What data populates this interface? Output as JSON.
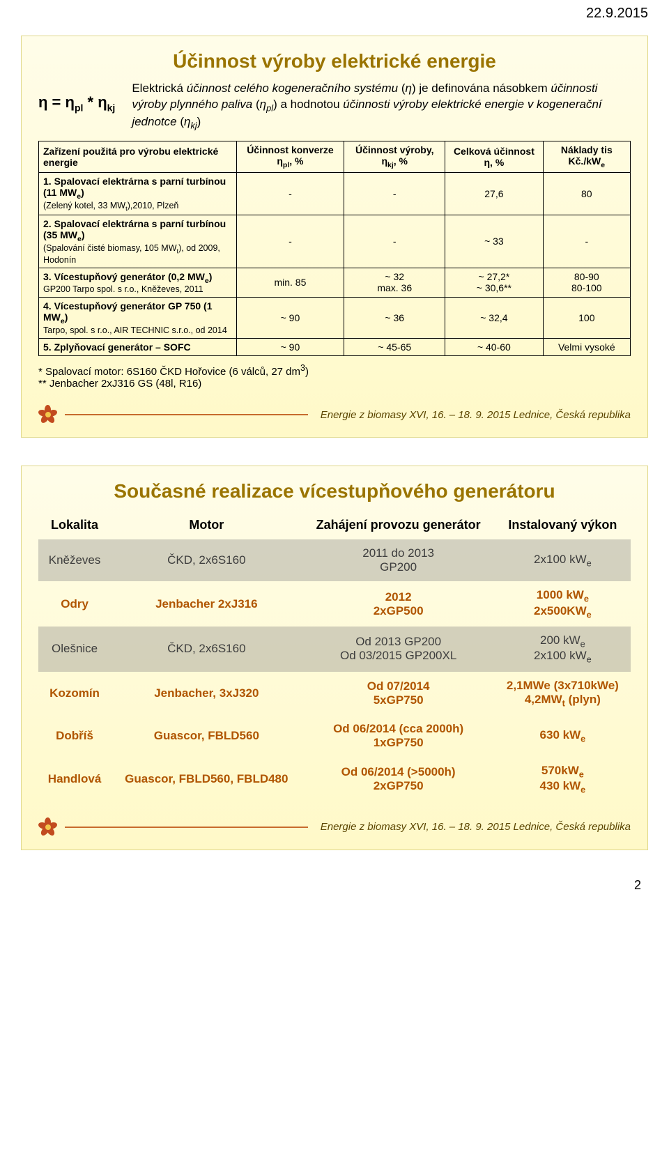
{
  "page_date": "22.9.2015",
  "page_number": "2",
  "footer_text": "Energie z biomasy XVI, 16. – 18. 9. 2015 Lednice, Česká republika",
  "slide1": {
    "title": "Účinnost výroby elektrické energie",
    "formula_html": "η = η<sub>pl</sub> * η<sub>kj</sub>",
    "definition_html": "Elektrická <i>účinnost celého kogeneračního systému</i> (<i>η</i>) je definována násobkem <i>účinnosti výroby plynného paliva</i> (<i>η<sub>pl</sub></i>) a hodnotou <i>účinnosti výroby elektrické energie v kogenerační jednotce</i> (<i>η<sub>kj</sub></i>)",
    "table": {
      "header": [
        "Zařízení použitá pro výrobu elektrické energie",
        "Účinnost konverze η<sub>pl</sub>, %",
        "Účinnost výroby, η<sub>kj</sub>, %",
        "Celková účinnost η, %",
        "Náklady tis Kč./kW<sub>e</sub>"
      ],
      "rows": [
        {
          "label_main": "1. Spalovací elektrárna s parní turbínou (11 MW<sub>e</sub>)",
          "label_sub": "(Zelený kotel, 33 MW<sub>t</sub>),2010, Plzeň",
          "c1": "-",
          "c2": "-",
          "c3": "27,6",
          "c4": "80"
        },
        {
          "label_main": "2. Spalovací elektrárna s parní turbínou (35 MW<sub>e</sub>)",
          "label_sub": "(Spalování čisté biomasy, 105 MW<sub>t</sub>), od 2009, Hodonín",
          "c1": "-",
          "c2": "-",
          "c3": "~ 33",
          "c4": "-"
        },
        {
          "label_main": "3. Vícestupňový generátor (0,2 MW<sub>e</sub>)",
          "label_sub": "GP200 Tarpo spol. s r.o., Kněževes, 2011",
          "c1": "min. 85",
          "c2": "~ 32<br>max. 36",
          "c3": "~ 27,2*<br>~ 30,6**",
          "c4": "80-90<br>80-100"
        },
        {
          "label_main": "4. Vícestupňový generátor GP 750 (1 MW<sub>e</sub>)",
          "label_sub": "Tarpo, spol. s r.o., AIR TECHNIC s.r.o., od 2014",
          "c1": "~ 90",
          "c2": "~ 36",
          "c3": "~ 32,4",
          "c4": "100"
        },
        {
          "label_main": "5. Zplyňovací generátor – SOFC",
          "label_sub": "",
          "c1": "~ 90",
          "c2": "~ 45-65",
          "c3": "~ 40-60",
          "c4": "Velmi vysoké"
        }
      ]
    },
    "footnote1": "* Spalovací motor: 6S160 ČKD Hořovice (6 válců, 27 dm<sup>3</sup>)",
    "footnote2": "** Jenbacher 2xJ316 GS (48l, R16)"
  },
  "slide2": {
    "title": "Současné realizace vícestupňového generátoru",
    "table": {
      "header": [
        "Lokalita",
        "Motor",
        "Zahájení provozu generátor",
        "Instalovaný výkon"
      ],
      "rows": [
        {
          "class": "gray",
          "c0": "Kněževes",
          "c1": "ČKD, 2x6S160",
          "c2": "2011 do 2013<br>GP200",
          "c3": "2x100 kW<sub>e</sub>"
        },
        {
          "class": "orange",
          "c0": "Odry",
          "c1": "Jenbacher 2xJ316",
          "c2": "2012<br>2xGP500",
          "c3": "1000 kW<sub>e</sub><br>2x500KW<sub>e</sub>"
        },
        {
          "class": "gray",
          "c0": "Olešnice",
          "c1": "ČKD, 2x6S160",
          "c2": "Od 2013 GP200<br>Od 03/2015 GP200XL",
          "c3": "200 kW<sub>e</sub><br>2x100 kW<sub>e</sub>"
        },
        {
          "class": "orange",
          "c0": "Kozomín",
          "c1": "Jenbacher, 3xJ320",
          "c2": "Od 07/2014<br>5xGP750",
          "c3": "2,1MWe (3x710kWe)<br>4,2MW<sub>t</sub> (plyn)"
        },
        {
          "class": "orange",
          "c0": "Dobříš",
          "c1": "Guascor, FBLD560",
          "c2": "Od 06/2014 (cca 2000h)<br>1xGP750",
          "c3": "630 kW<sub>e</sub>"
        },
        {
          "class": "orange",
          "c0": "Handlová",
          "c1": "Guascor, FBLD560, FBLD480",
          "c2": "Od 06/2014 (>5000h)<br>2xGP750",
          "c3": "570kW<sub>e</sub><br>430 kW<sub>e</sub>"
        }
      ]
    }
  }
}
